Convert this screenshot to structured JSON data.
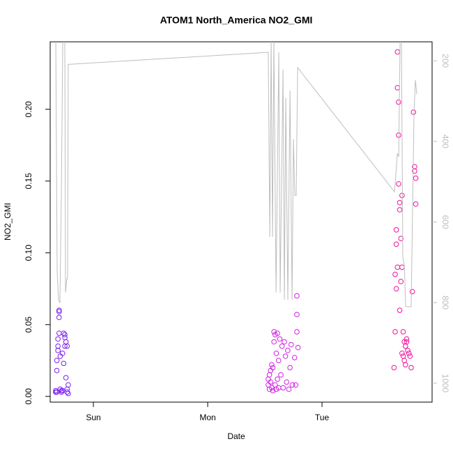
{
  "chart_data": {
    "type": "scatter",
    "title": "ATOM1 North_America NO2_GMI",
    "xlabel": "Date",
    "ylabel": "NO2_GMI",
    "xlim": [
      -0.378,
      2.963
    ],
    "xticks": [
      {
        "value": 0,
        "label": "Sun"
      },
      {
        "value": 1,
        "label": "Mon"
      },
      {
        "value": 2,
        "label": "Tue"
      }
    ],
    "ylim": [
      -0.004,
      0.247
    ],
    "yticks": [
      {
        "value": 0,
        "label": "0.00"
      },
      0.05,
      {
        "value": 0.1,
        "label": "0.10"
      },
      0.15,
      {
        "value": 0.2,
        "label": "0.20"
      }
    ],
    "y2lim": [
      1047,
      153
    ],
    "y2ticks": [
      200,
      400,
      600,
      800,
      1000
    ],
    "y2color": "#bebebe",
    "series": [
      {
        "color": "#7a1ff0",
        "x": [
          -0.33,
          -0.33,
          -0.32,
          -0.32,
          -0.32,
          -0.31,
          -0.31,
          -0.31,
          -0.3,
          -0.3,
          -0.3,
          -0.3,
          -0.29,
          -0.29,
          -0.28,
          -0.28,
          -0.27,
          -0.27,
          -0.26,
          -0.26,
          -0.25,
          -0.25,
          -0.25,
          -0.24,
          -0.24,
          -0.23,
          -0.23,
          -0.23,
          -0.22,
          -0.22
        ],
        "values": [
          0.003,
          0.004,
          0.025,
          0.018,
          0.003,
          0.035,
          0.04,
          0.032,
          0.06,
          0.059,
          0.055,
          0.044,
          0.028,
          0.005,
          0.004,
          0.003,
          0.004,
          0.03,
          0.044,
          0.023,
          0.043,
          0.041,
          0.035,
          0.038,
          0.013,
          0.005,
          0.003,
          0.035,
          0.008,
          0.002
        ]
      },
      {
        "color": "#d31fe6",
        "x": [
          1.53,
          1.53,
          1.54,
          1.54,
          1.55,
          1.55,
          1.56,
          1.56,
          1.57,
          1.57,
          1.58,
          1.58,
          1.59,
          1.59,
          1.6,
          1.6,
          1.61,
          1.61,
          1.62,
          1.62,
          1.63,
          1.64,
          1.65,
          1.66,
          1.67,
          1.68,
          1.69,
          1.7,
          1.71,
          1.72,
          1.73,
          1.74,
          1.76,
          1.77,
          1.78,
          1.78,
          1.78,
          1.79
        ],
        "values": [
          0.008,
          0.012,
          0.005,
          0.015,
          0.01,
          0.018,
          0.006,
          0.022,
          0.004,
          0.02,
          0.045,
          0.038,
          0.008,
          0.043,
          0.03,
          0.005,
          0.044,
          0.012,
          0.025,
          0.006,
          0.04,
          0.015,
          0.035,
          0.006,
          0.038,
          0.028,
          0.01,
          0.032,
          0.005,
          0.02,
          0.036,
          0.008,
          0.027,
          0.008,
          0.07,
          0.057,
          0.045,
          0.034
        ]
      },
      {
        "color": "#f0129b",
        "x": [
          2.63,
          2.64,
          2.64,
          2.65,
          2.65,
          2.65,
          2.66,
          2.66,
          2.66,
          2.67,
          2.67,
          2.67,
          2.68,
          2.68,
          2.68,
          2.69,
          2.69,
          2.7,
          2.7,
          2.7,
          2.71,
          2.71,
          2.72,
          2.72,
          2.73,
          2.73,
          2.74,
          2.74,
          2.75,
          2.76,
          2.77,
          2.78,
          2.79,
          2.8,
          2.81,
          2.81,
          2.82,
          2.82
        ],
        "values": [
          0.02,
          0.045,
          0.085,
          0.075,
          0.116,
          0.106,
          0.24,
          0.215,
          0.09,
          0.205,
          0.182,
          0.148,
          0.135,
          0.13,
          0.06,
          0.11,
          0.08,
          0.09,
          0.14,
          0.03,
          0.028,
          0.045,
          0.025,
          0.038,
          0.022,
          0.035,
          0.04,
          0.038,
          0.032,
          0.03,
          0.028,
          0.02,
          0.073,
          0.198,
          0.16,
          0.157,
          0.152,
          0.134
        ]
      },
      {
        "type": "line",
        "axis": "y2",
        "color": "#bebebe",
        "x": [
          -0.329,
          -0.317,
          -0.305,
          -0.293,
          -0.28,
          -0.268,
          -0.25,
          -0.244,
          -0.232,
          -0.226,
          -0.22,
          1.53,
          1.543,
          1.555,
          1.567,
          1.579,
          1.598,
          1.622,
          1.634,
          1.659,
          1.671,
          1.683,
          1.701,
          1.72,
          1.738,
          1.75,
          1.762,
          1.774,
          1.787,
          2.634,
          2.646,
          2.659,
          2.671,
          2.683,
          2.695,
          2.707,
          2.72,
          2.732,
          2.768,
          2.78,
          2.793,
          2.805,
          2.817,
          2.829
        ],
        "values": [
          150,
          724,
          793,
          801,
          525,
          150,
          150,
          775,
          741,
          741,
          209,
          179,
          637,
          150,
          637,
          150,
          775,
          179,
          775,
          222,
          793,
          292,
          793,
          274,
          793,
          395,
          534,
          534,
          217,
          525,
          482,
          430,
          438,
          150,
          150,
          689,
          706,
          810,
          810,
          810,
          551,
          326,
          248,
          283
        ]
      }
    ]
  }
}
